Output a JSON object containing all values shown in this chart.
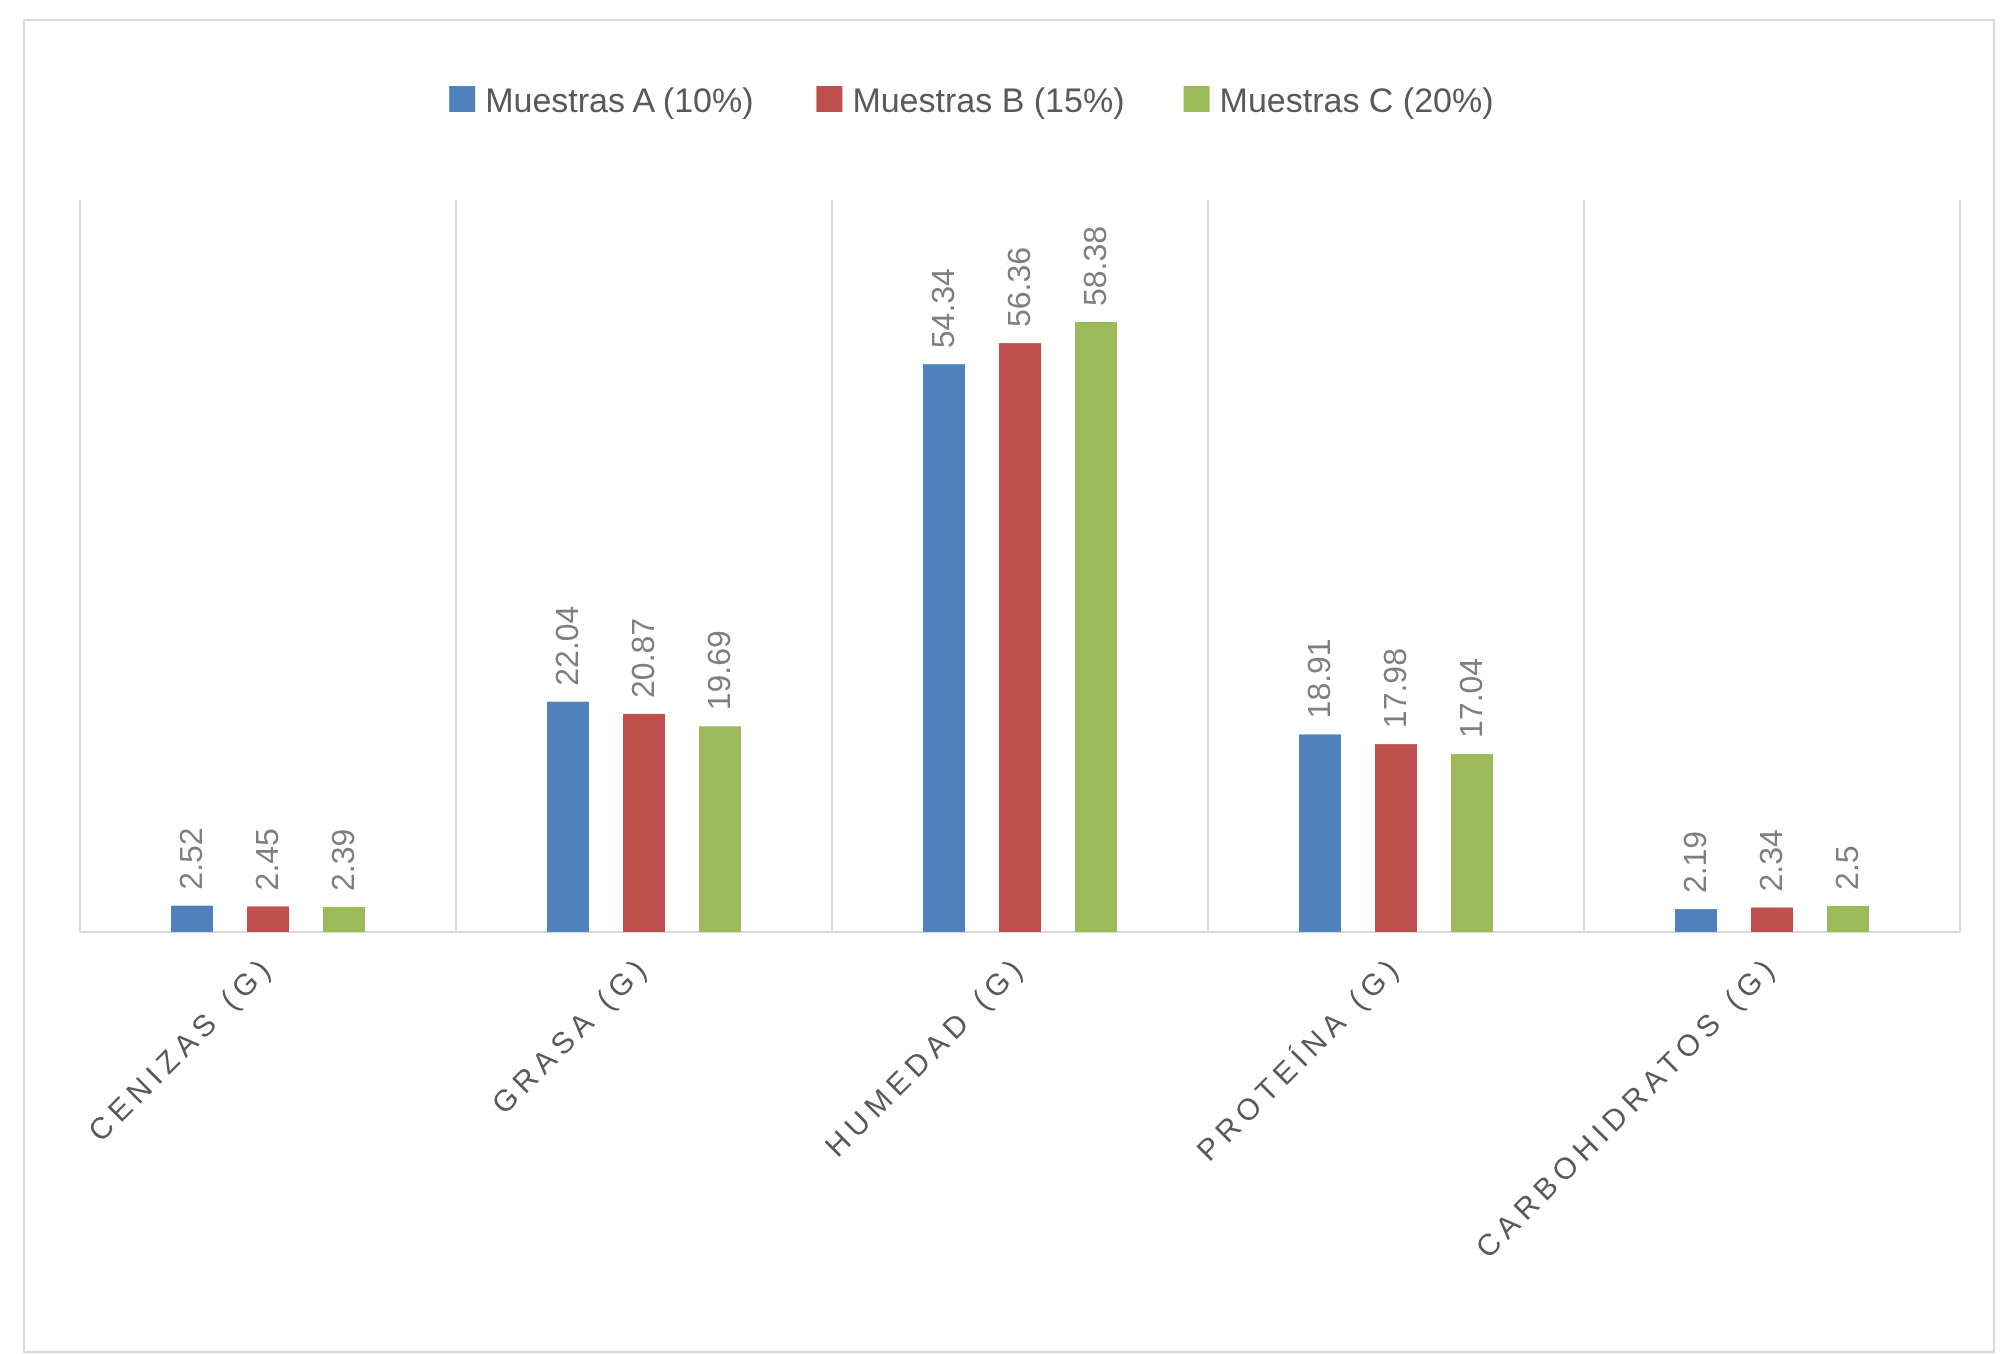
{
  "chart_data": {
    "type": "bar",
    "categories": [
      "CENIZAS (G)",
      "GRASA (G)",
      "HUMEDAD (G)",
      "PROTEÍNA (G)",
      "CARBOHIDRATOS (G)"
    ],
    "series": [
      {
        "name": "Muestras A (10%)",
        "color": "#4f81bd",
        "values": [
          2.52,
          22.04,
          54.34,
          18.91,
          2.19
        ]
      },
      {
        "name": "Muestras B (15%)",
        "color": "#c0504d",
        "values": [
          2.45,
          20.87,
          56.36,
          17.98,
          2.34
        ]
      },
      {
        "name": "Muestras C (20%)",
        "color": "#9bbb59",
        "values": [
          2.39,
          19.69,
          58.38,
          17.04,
          2.5
        ]
      }
    ],
    "data_labels": true,
    "grid": "x",
    "legend": "top"
  }
}
